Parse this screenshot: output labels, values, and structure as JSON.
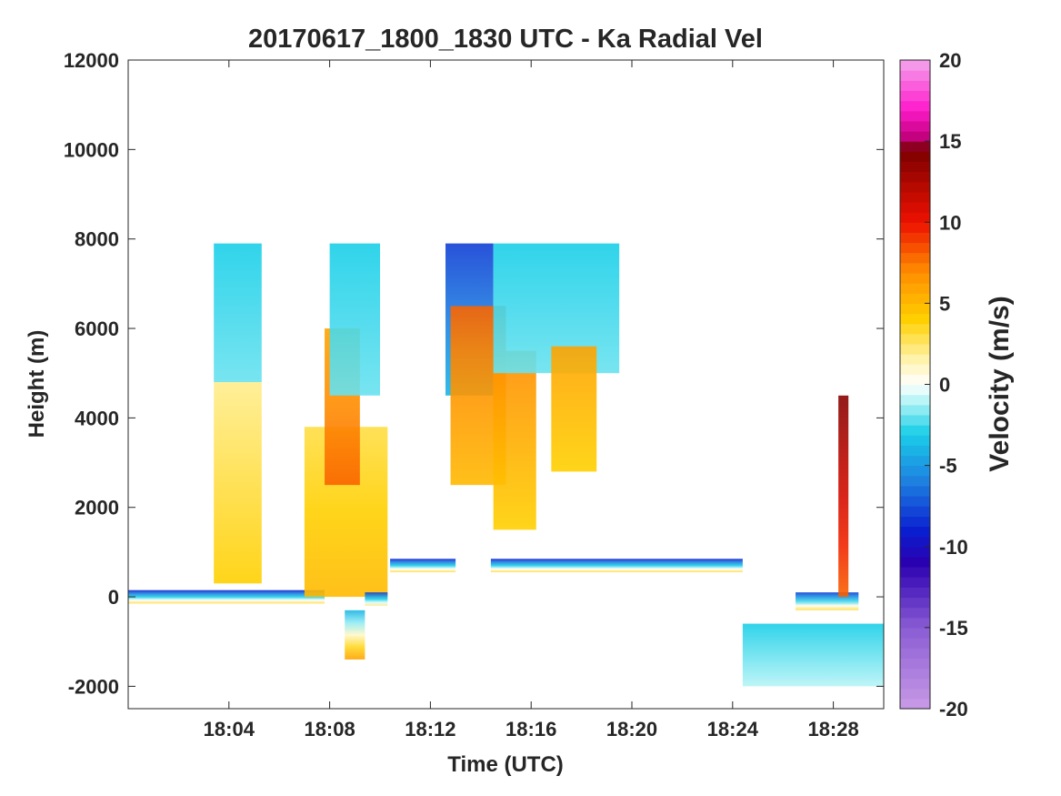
{
  "chart_data": {
    "type": "heatmap",
    "title": "20170617_1800_1830 UTC - Ka Radial Vel",
    "xlabel": "Time (UTC)",
    "ylabel": "Height (m)",
    "x_range_minutes": [
      0,
      30
    ],
    "ylim": [
      -2500,
      12000
    ],
    "x_ticks": [
      {
        "t": 4,
        "label": "18:04"
      },
      {
        "t": 8,
        "label": "18:08"
      },
      {
        "t": 12,
        "label": "18:12"
      },
      {
        "t": 16,
        "label": "18:16"
      },
      {
        "t": 20,
        "label": "18:20"
      },
      {
        "t": 24,
        "label": "18:24"
      },
      {
        "t": 28,
        "label": "18:28"
      }
    ],
    "y_ticks": [
      {
        "v": -2000,
        "label": "-2000"
      },
      {
        "v": 0,
        "label": "0"
      },
      {
        "v": 2000,
        "label": "2000"
      },
      {
        "v": 4000,
        "label": "4000"
      },
      {
        "v": 6000,
        "label": "6000"
      },
      {
        "v": 8000,
        "label": "8000"
      },
      {
        "v": 10000,
        "label": "10000"
      },
      {
        "v": 12000,
        "label": "12000"
      }
    ],
    "colorbar": {
      "label": "Velocity (m/s)",
      "range": [
        -20,
        20
      ],
      "ticks": [
        {
          "v": 20,
          "label": "20"
        },
        {
          "v": 15,
          "label": "15"
        },
        {
          "v": 10,
          "label": "10"
        },
        {
          "v": 5,
          "label": "5"
        },
        {
          "v": 0,
          "label": "0"
        },
        {
          "v": -5,
          "label": "-5"
        },
        {
          "v": -10,
          "label": "-10"
        },
        {
          "v": -15,
          "label": "-15"
        },
        {
          "v": -20,
          "label": "-20"
        }
      ],
      "stops": [
        {
          "v": -20,
          "color": "#c99be6"
        },
        {
          "v": -15,
          "color": "#8a5cd4"
        },
        {
          "v": -11,
          "color": "#2a00b0"
        },
        {
          "v": -9,
          "color": "#0a1fd0"
        },
        {
          "v": -6,
          "color": "#1e7fe0"
        },
        {
          "v": -3,
          "color": "#19cfe8"
        },
        {
          "v": -1,
          "color": "#b8f4f6"
        },
        {
          "v": 0,
          "color": "#ffffff"
        },
        {
          "v": 1.5,
          "color": "#fff4b0"
        },
        {
          "v": 4,
          "color": "#ffd000"
        },
        {
          "v": 7,
          "color": "#ff8c00"
        },
        {
          "v": 10,
          "color": "#ee1100"
        },
        {
          "v": 14.5,
          "color": "#7a0000"
        },
        {
          "v": 15.2,
          "color": "#c0007a"
        },
        {
          "v": 17,
          "color": "#ff1ccc"
        },
        {
          "v": 20,
          "color": "#f4a6ee"
        }
      ]
    },
    "regions": [
      {
        "t0": 0,
        "t1": 7.8,
        "h0": -150,
        "h1": 150,
        "v0": 3,
        "v1": -9
      },
      {
        "t0": 3.4,
        "t1": 5.3,
        "h0": 300,
        "h1": 4800,
        "v0": 4,
        "v1": 2
      },
      {
        "t0": 3.4,
        "t1": 5.3,
        "h0": 4800,
        "h1": 7900,
        "v0": -2,
        "v1": -3
      },
      {
        "t0": 7.0,
        "t1": 10.3,
        "h0": 0,
        "h1": 3800,
        "v0": 5,
        "v1": 3
      },
      {
        "t0": 7.8,
        "t1": 9.2,
        "h0": 2500,
        "h1": 6000,
        "v0": 8,
        "v1": 6
      },
      {
        "t0": 8.0,
        "t1": 10.0,
        "h0": 4500,
        "h1": 7900,
        "v0": -2,
        "v1": -3
      },
      {
        "t0": 8.6,
        "t1": 9.4,
        "h0": -1400,
        "h1": -300,
        "v0": 6,
        "v1": -4
      },
      {
        "t0": 9.4,
        "t1": 10.3,
        "h0": -200,
        "h1": 100,
        "v0": 2,
        "v1": -8
      },
      {
        "t0": 10.4,
        "t1": 13.0,
        "h0": 550,
        "h1": 850,
        "v0": 3,
        "v1": -9
      },
      {
        "t0": 12.6,
        "t1": 14.5,
        "h0": 4500,
        "h1": 7900,
        "v0": -4,
        "v1": -8
      },
      {
        "t0": 12.8,
        "t1": 15.0,
        "h0": 2500,
        "h1": 6500,
        "v0": 5,
        "v1": 8
      },
      {
        "t0": 14.5,
        "t1": 16.2,
        "h0": 1500,
        "h1": 5500,
        "v0": 4,
        "v1": 7
      },
      {
        "t0": 14.5,
        "t1": 19.5,
        "h0": 5000,
        "h1": 7900,
        "v0": -2,
        "v1": -3
      },
      {
        "t0": 16.8,
        "t1": 18.6,
        "h0": 2800,
        "h1": 5600,
        "v0": 4,
        "v1": 6
      },
      {
        "t0": 14.4,
        "t1": 24.4,
        "h0": 550,
        "h1": 850,
        "v0": 3,
        "v1": -9
      },
      {
        "t0": 24.4,
        "t1": 30,
        "h0": -2000,
        "h1": -600,
        "v0": -1,
        "v1": -3
      },
      {
        "t0": 26.5,
        "t1": 29.0,
        "h0": -300,
        "h1": 100,
        "v0": 3,
        "v1": -8
      },
      {
        "t0": 28.2,
        "t1": 28.6,
        "h0": 0,
        "h1": 4500,
        "v0": 8,
        "v1": 14
      }
    ]
  }
}
